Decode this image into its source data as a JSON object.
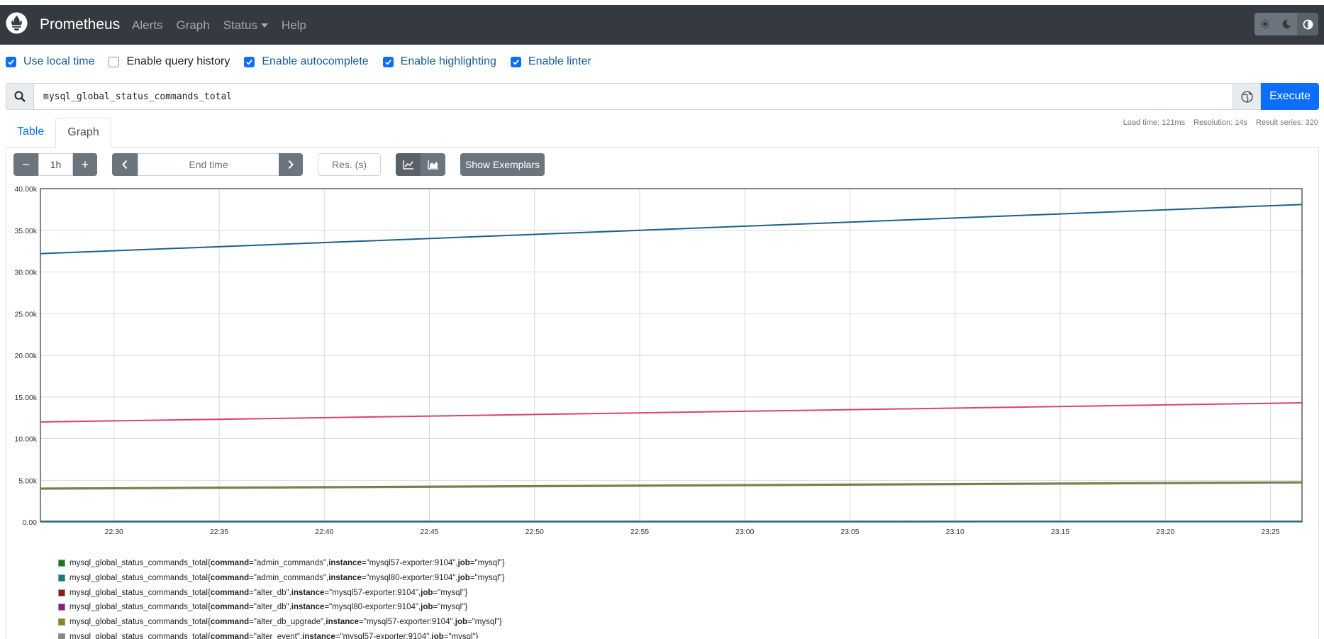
{
  "navbar": {
    "brand": "Prometheus",
    "links": [
      "Alerts",
      "Graph",
      "Status",
      "Help"
    ]
  },
  "options": [
    {
      "label": "Use local time",
      "checked": true
    },
    {
      "label": "Enable query history",
      "checked": false
    },
    {
      "label": "Enable autocomplete",
      "checked": true
    },
    {
      "label": "Enable highlighting",
      "checked": true
    },
    {
      "label": "Enable linter",
      "checked": true
    }
  ],
  "query": {
    "expression": "mysql_global_status_commands_total",
    "execute_label": "Execute"
  },
  "stats": {
    "load_time": "Load time: 121ms",
    "resolution": "Resolution: 14s",
    "result_series": "Result series: 320"
  },
  "tabs": [
    "Table",
    "Graph"
  ],
  "controls": {
    "range": "1h",
    "minus": "−",
    "plus": "+",
    "end_time_placeholder": "End time",
    "res_placeholder": "Res. (s)",
    "exemplars_label": "Show Exemplars"
  },
  "chart_data": {
    "type": "line",
    "x": [
      "22:30",
      "22:35",
      "22:40",
      "22:45",
      "22:50",
      "22:55",
      "23:00",
      "23:05",
      "23:10",
      "23:15",
      "23:20",
      "23:25"
    ],
    "yticks": [
      "0.00",
      "5.00k",
      "10.00k",
      "15.00k",
      "20.00k",
      "25.00k",
      "30.00k",
      "35.00k",
      "40.00k"
    ],
    "ylim": [
      0,
      40000
    ],
    "grid": true,
    "series": [
      {
        "color": "#1f5f8b",
        "start": 32200,
        "end": 38100
      },
      {
        "color": "#e0416b",
        "start": 12000,
        "end": 14300
      },
      {
        "color": "#5a8a3a",
        "start": 4050,
        "end": 4800
      },
      {
        "color": "#8a7a5a",
        "start": 3950,
        "end": 4700
      },
      {
        "color": "#b026b0",
        "start": 80,
        "end": 90
      },
      {
        "color": "#0e7c7b",
        "start": 30,
        "end": 40
      }
    ]
  },
  "legend": [
    {
      "color": "#1a7a1a",
      "metric": "mysql_global_status_commands_total{",
      "command": "\"admin_commands\"",
      "instance": "\"mysql57-exporter:9104\"",
      "job": "\"mysql\"}"
    },
    {
      "color": "#0e7c7b",
      "metric": "mysql_global_status_commands_total{",
      "command": "\"admin_commands\"",
      "instance": "\"mysql80-exporter:9104\"",
      "job": "\"mysql\"}"
    },
    {
      "color": "#8b1a1a",
      "metric": "mysql_global_status_commands_total{",
      "command": "\"alter_db\"",
      "instance": "\"mysql57-exporter:9104\"",
      "job": "\"mysql\"}"
    },
    {
      "color": "#8a1a8a",
      "metric": "mysql_global_status_commands_total{",
      "command": "\"alter_db\"",
      "instance": "\"mysql80-exporter:9104\"",
      "job": "\"mysql\"}"
    },
    {
      "color": "#8a8a1a",
      "metric": "mysql_global_status_commands_total{",
      "command": "\"alter_db_upgrade\"",
      "instance": "\"mysql57-exporter:9104\"",
      "job": "\"mysql\"}"
    },
    {
      "color": "#8a8a8a",
      "metric": "mysql_global_status_commands_total{",
      "command": "\"alter_event\"",
      "instance": "\"mysql57-exporter:9104\"",
      "job": "\"mysql\"}"
    }
  ]
}
